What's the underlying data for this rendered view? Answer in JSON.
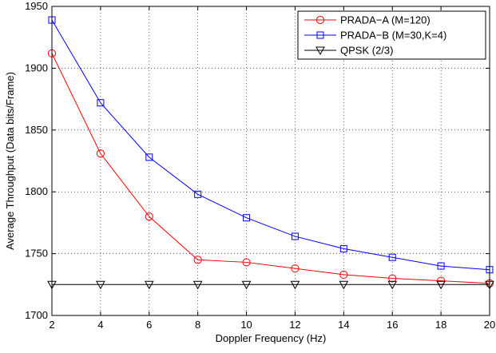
{
  "chart_data": {
    "type": "line",
    "xlabel": "Doppler Frequency (Hz)",
    "ylabel": "Average Throughput (Data bits/Frame)",
    "xlim": [
      2,
      20
    ],
    "ylim": [
      1700,
      1950
    ],
    "xticks": [
      2,
      4,
      6,
      8,
      10,
      12,
      14,
      16,
      18,
      20
    ],
    "yticks": [
      1700,
      1750,
      1800,
      1850,
      1900,
      1950
    ],
    "grid": true,
    "legend_position": "top-right",
    "x": [
      2,
      4,
      6,
      8,
      10,
      12,
      14,
      16,
      18,
      20
    ],
    "series": [
      {
        "name": "PRADA−A (M=120)",
        "color": "#ff0000",
        "marker": "circle",
        "values": [
          1912,
          1831,
          1780,
          1745,
          1743,
          1738,
          1733,
          1730,
          1728,
          1726
        ]
      },
      {
        "name": "PRADA−B (M=30,K=4)",
        "color": "#0000ff",
        "marker": "square",
        "values": [
          1939,
          1872,
          1828,
          1798,
          1779,
          1764,
          1754,
          1747,
          1740,
          1737
        ]
      },
      {
        "name": "QPSK (2/3)",
        "color": "#000000",
        "marker": "triangle-down",
        "values": [
          1725,
          1725,
          1725,
          1725,
          1725,
          1725,
          1725,
          1725,
          1725,
          1725
        ]
      }
    ]
  }
}
